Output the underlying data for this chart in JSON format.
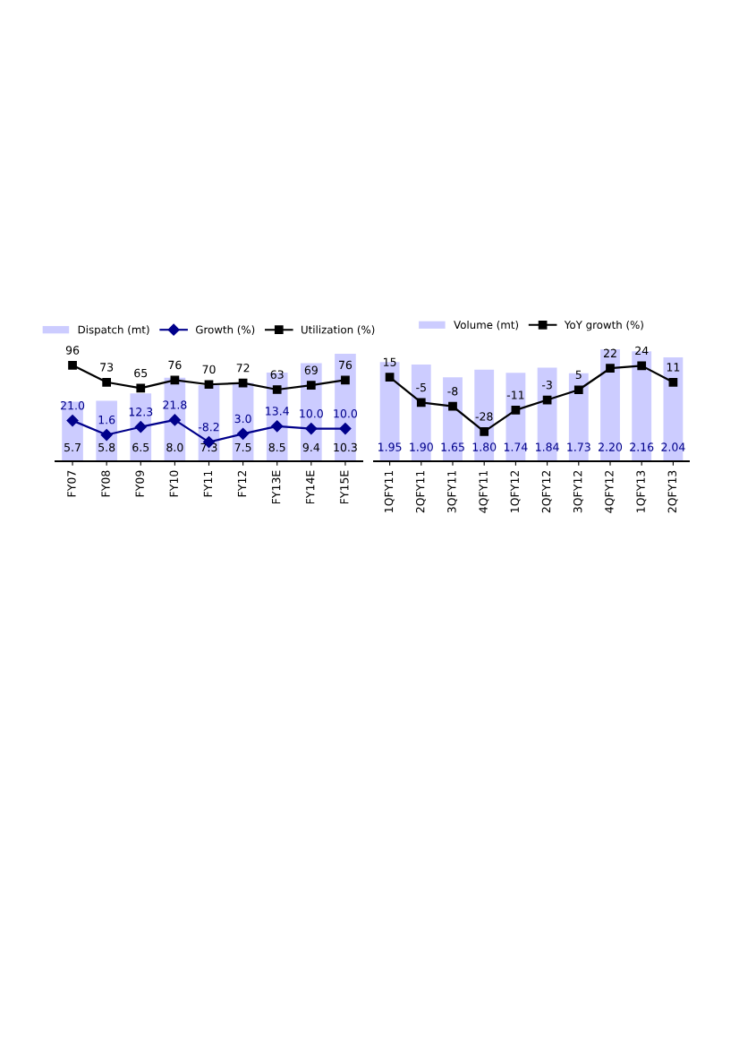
{
  "chart_data": [
    {
      "type": "bar",
      "categories": [
        "FY07",
        "FY08",
        "FY09",
        "FY10",
        "FY11",
        "FY12",
        "FY13E",
        "FY14E",
        "FY15E"
      ],
      "data_labels": true,
      "legend": "top",
      "tick_labels": "x",
      "grid": false,
      "series": [
        {
          "name": "Dispatch (mt)",
          "axis": "y",
          "color": "#ccccff",
          "values": [
            5.7,
            5.8,
            6.5,
            8.0,
            7.3,
            7.5,
            8.5,
            9.4,
            10.3
          ],
          "value_labels": [
            "5.7",
            "5.8",
            "6.5",
            "8.0",
            "7.3",
            "7.5",
            "8.5",
            "9.4",
            "10.3"
          ]
        },
        {
          "name": "Growth (%)",
          "type": "line",
          "axis": "y2",
          "color": "#00008b",
          "marker": "diamond",
          "line_style": "solid",
          "values": [
            21.0,
            1.6,
            12.3,
            21.8,
            -8.2,
            3.0,
            13.4,
            10.0,
            10.0
          ],
          "value_labels": [
            "21.0",
            "1.6",
            "12.3",
            "21.8",
            "-8.2",
            "3.0",
            "13.4",
            "10.0",
            "10.0"
          ]
        },
        {
          "name": "Utilization (%)",
          "type": "line",
          "axis": "y2",
          "color": "#000000",
          "marker": "square",
          "line_style": "solid",
          "values": [
            96,
            73,
            65,
            76,
            70,
            72,
            63,
            69,
            76
          ],
          "value_labels": [
            "96",
            "73",
            "65",
            "76",
            "70",
            "72",
            "63",
            "69",
            "76"
          ]
        }
      ]
    },
    {
      "type": "bar",
      "categories": [
        "1QFY11",
        "2QFY11",
        "3QFY11",
        "4QFY11",
        "1QFY12",
        "2QFY12",
        "3QFY12",
        "4QFY12",
        "1QFY13",
        "2QFY13"
      ],
      "data_labels": true,
      "legend": "top",
      "tick_labels": "x",
      "grid": false,
      "series": [
        {
          "name": "Volume (mt)",
          "axis": "y",
          "color": "#ccccff",
          "values": [
            1.95,
            1.9,
            1.65,
            1.8,
            1.74,
            1.84,
            1.73,
            2.2,
            2.16,
            2.04
          ],
          "value_labels": [
            "1.95",
            "1.90",
            "1.65",
            "1.80",
            "1.74",
            "1.84",
            "1.73",
            "2.20",
            "2.16",
            "2.04"
          ]
        },
        {
          "name": "YoY growth (%)",
          "type": "line",
          "axis": "y2",
          "color": "#000000",
          "marker": "square",
          "line_style": "solid",
          "values": [
            15,
            -5,
            -8,
            -28,
            -11,
            -3,
            5,
            22,
            24,
            11
          ],
          "value_labels": [
            "15",
            "-5",
            "-8",
            "-28",
            "-11",
            "-3",
            "5",
            "22",
            "24",
            "11"
          ]
        }
      ]
    }
  ]
}
